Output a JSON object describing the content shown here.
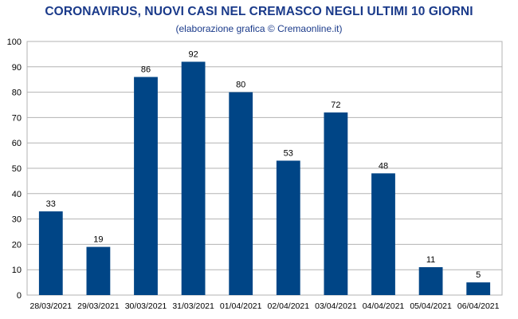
{
  "chart_data": {
    "type": "bar",
    "title": "CORONAVIRUS, NUOVI CASI NEL CREMASCO NEGLI ULTIMI 10 GIORNI",
    "subtitle": "(elaborazione grafica © Cremaonline.it)",
    "categories": [
      "28/03/2021",
      "29/03/2021",
      "30/03/2021",
      "31/03/2021",
      "01/04/2021",
      "02/04/2021",
      "03/04/2021",
      "04/04/2021",
      "05/04/2021",
      "06/04/2021"
    ],
    "values": [
      33,
      19,
      86,
      92,
      80,
      53,
      72,
      48,
      11,
      5
    ],
    "xlabel": "",
    "ylabel": "",
    "ylim": [
      0,
      100
    ],
    "yticks": [
      0,
      10,
      20,
      30,
      40,
      50,
      60,
      70,
      80,
      90,
      100
    ],
    "grid": true,
    "bar_color": "#004586",
    "title_color": "#1a3a8a"
  }
}
